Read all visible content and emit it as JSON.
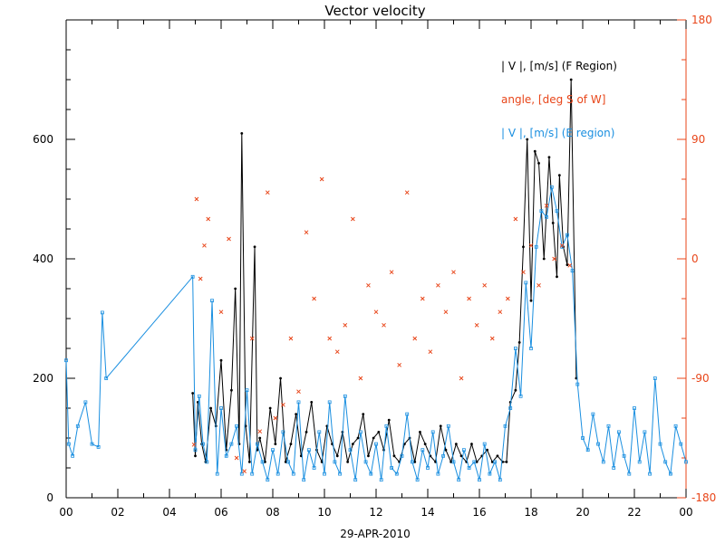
{
  "chart_data": {
    "type": "line",
    "title": "Vector velocity",
    "xlabel": "29-APR-2010",
    "x_ticks": [
      "00",
      "02",
      "04",
      "06",
      "08",
      "10",
      "12",
      "14",
      "16",
      "18",
      "20",
      "22",
      "00"
    ],
    "x_range_hours": [
      0,
      24
    ],
    "y_left": {
      "range": [
        0,
        800
      ],
      "ticks": [
        "0",
        "200",
        "400",
        "600"
      ]
    },
    "y_right": {
      "range": [
        -180,
        180
      ],
      "ticks": [
        "-180",
        "-90",
        "0",
        "90",
        "180"
      ]
    },
    "legend": {
      "position": "top-right",
      "entries": [
        {
          "text": "| V |, [m/s] (F Region)",
          "color": "#000000"
        },
        {
          "text": "angle, [deg S of W]",
          "color": "#e8461a"
        },
        {
          "text": "| V |, [m/s] (E region)",
          "color": "#1a8fe0"
        }
      ]
    },
    "colors": {
      "f_region": "#000000",
      "angle": "#e8461a",
      "e_region": "#1a8fe0"
    },
    "series": [
      {
        "name": "| V |, [m/s] (F Region)",
        "axis": "left",
        "x": [
          4.9,
          5.0,
          5.1,
          5.25,
          5.4,
          5.6,
          5.8,
          6.0,
          6.2,
          6.4,
          6.55,
          6.7,
          6.8,
          6.95,
          7.1,
          7.3,
          7.4,
          7.5,
          7.7,
          7.9,
          8.1,
          8.3,
          8.5,
          8.7,
          8.9,
          9.1,
          9.3,
          9.5,
          9.7,
          9.9,
          10.1,
          10.3,
          10.5,
          10.7,
          10.9,
          11.1,
          11.3,
          11.5,
          11.7,
          11.9,
          12.1,
          12.3,
          12.5,
          12.7,
          12.9,
          13.1,
          13.3,
          13.5,
          13.7,
          13.9,
          14.1,
          14.3,
          14.5,
          14.7,
          14.9,
          15.1,
          15.3,
          15.5,
          15.7,
          15.9,
          16.1,
          16.3,
          16.5,
          16.7,
          16.9,
          17.05,
          17.2,
          17.4,
          17.55,
          17.7,
          17.85,
          18.0,
          18.15,
          18.3,
          18.5,
          18.7,
          18.85,
          19.0,
          19.1,
          19.25,
          19.4,
          19.55,
          19.75
        ],
        "y": [
          175,
          70,
          160,
          90,
          60,
          150,
          120,
          230,
          80,
          180,
          350,
          90,
          610,
          120,
          60,
          420,
          80,
          100,
          60,
          150,
          90,
          200,
          60,
          90,
          140,
          70,
          110,
          160,
          80,
          60,
          120,
          90,
          70,
          110,
          60,
          90,
          100,
          140,
          70,
          100,
          110,
          80,
          130,
          70,
          60,
          90,
          100,
          60,
          110,
          90,
          70,
          60,
          120,
          80,
          60,
          90,
          70,
          60,
          90,
          60,
          70,
          80,
          60,
          70,
          60,
          60,
          160,
          180,
          260,
          420,
          600,
          330,
          580,
          560,
          400,
          570,
          460,
          370,
          540,
          420,
          390,
          700,
          200
        ]
      },
      {
        "name": "| V |, [m/s] (E region)",
        "axis": "left",
        "x": [
          0.0,
          0.1,
          0.25,
          0.45,
          0.75,
          1.0,
          1.25,
          1.4,
          1.55,
          4.9,
          5.0,
          5.15,
          5.3,
          5.45,
          5.65,
          5.85,
          6.0,
          6.2,
          6.4,
          6.6,
          6.8,
          7.0,
          7.2,
          7.4,
          7.6,
          7.8,
          8.0,
          8.2,
          8.4,
          8.6,
          8.8,
          9.0,
          9.2,
          9.4,
          9.6,
          9.8,
          10.0,
          10.2,
          10.4,
          10.6,
          10.8,
          11.0,
          11.2,
          11.4,
          11.6,
          11.8,
          12.0,
          12.2,
          12.4,
          12.6,
          12.8,
          13.0,
          13.2,
          13.4,
          13.6,
          13.8,
          14.0,
          14.2,
          14.4,
          14.6,
          14.8,
          15.0,
          15.2,
          15.4,
          15.6,
          15.8,
          16.0,
          16.2,
          16.4,
          16.6,
          16.8,
          17.0,
          17.2,
          17.4,
          17.6,
          17.8,
          18.0,
          18.2,
          18.4,
          18.6,
          18.8,
          19.0,
          19.2,
          19.4,
          19.6,
          19.8,
          20.0,
          20.2,
          20.4,
          20.6,
          20.8,
          21.0,
          21.2,
          21.4,
          21.6,
          21.8,
          22.0,
          22.2,
          22.4,
          22.6,
          22.8,
          23.0,
          23.2,
          23.4,
          23.6,
          23.8,
          24.0
        ],
        "y": [
          230,
          90,
          70,
          120,
          160,
          90,
          85,
          310,
          200,
          370,
          80,
          170,
          90,
          60,
          330,
          40,
          150,
          70,
          90,
          120,
          40,
          180,
          40,
          90,
          60,
          30,
          80,
          40,
          110,
          60,
          40,
          160,
          30,
          80,
          50,
          110,
          40,
          160,
          60,
          40,
          170,
          80,
          30,
          110,
          60,
          40,
          90,
          30,
          120,
          50,
          40,
          70,
          140,
          60,
          30,
          80,
          50,
          110,
          40,
          70,
          120,
          60,
          30,
          80,
          50,
          60,
          30,
          90,
          40,
          60,
          30,
          120,
          150,
          250,
          170,
          360,
          250,
          420,
          480,
          470,
          520,
          480,
          420,
          440,
          380,
          190,
          100,
          80,
          140,
          90,
          60,
          120,
          50,
          110,
          70,
          40,
          150,
          60,
          110,
          40,
          200,
          90,
          60,
          40,
          120,
          90,
          60
        ]
      },
      {
        "name": "angle, [deg S of W]",
        "axis": "right",
        "x": [
          4.95,
          5.05,
          5.2,
          5.35,
          5.5,
          6.0,
          6.3,
          6.6,
          6.9,
          7.2,
          7.5,
          7.8,
          8.1,
          8.4,
          8.7,
          9.0,
          9.3,
          9.6,
          9.9,
          10.2,
          10.5,
          10.8,
          11.1,
          11.4,
          11.7,
          12.0,
          12.3,
          12.6,
          12.9,
          13.2,
          13.5,
          13.8,
          14.1,
          14.4,
          14.7,
          15.0,
          15.3,
          15.6,
          15.9,
          16.2,
          16.5,
          16.8,
          17.1,
          17.4,
          17.7,
          18.0,
          18.3,
          18.6,
          18.9,
          19.2,
          19.5
        ],
        "y": [
          -140,
          45,
          -15,
          10,
          30,
          -40,
          15,
          -150,
          -160,
          -60,
          -130,
          50,
          -120,
          -110,
          -60,
          -100,
          20,
          -30,
          60,
          -60,
          -70,
          -50,
          30,
          -90,
          -20,
          -40,
          -50,
          -10,
          -80,
          50,
          -60,
          -30,
          -70,
          -20,
          -40,
          -10,
          -90,
          -30,
          -50,
          -20,
          -60,
          -40,
          -30,
          30,
          -10,
          10,
          -20,
          40,
          0,
          10,
          -5
        ]
      }
    ]
  }
}
